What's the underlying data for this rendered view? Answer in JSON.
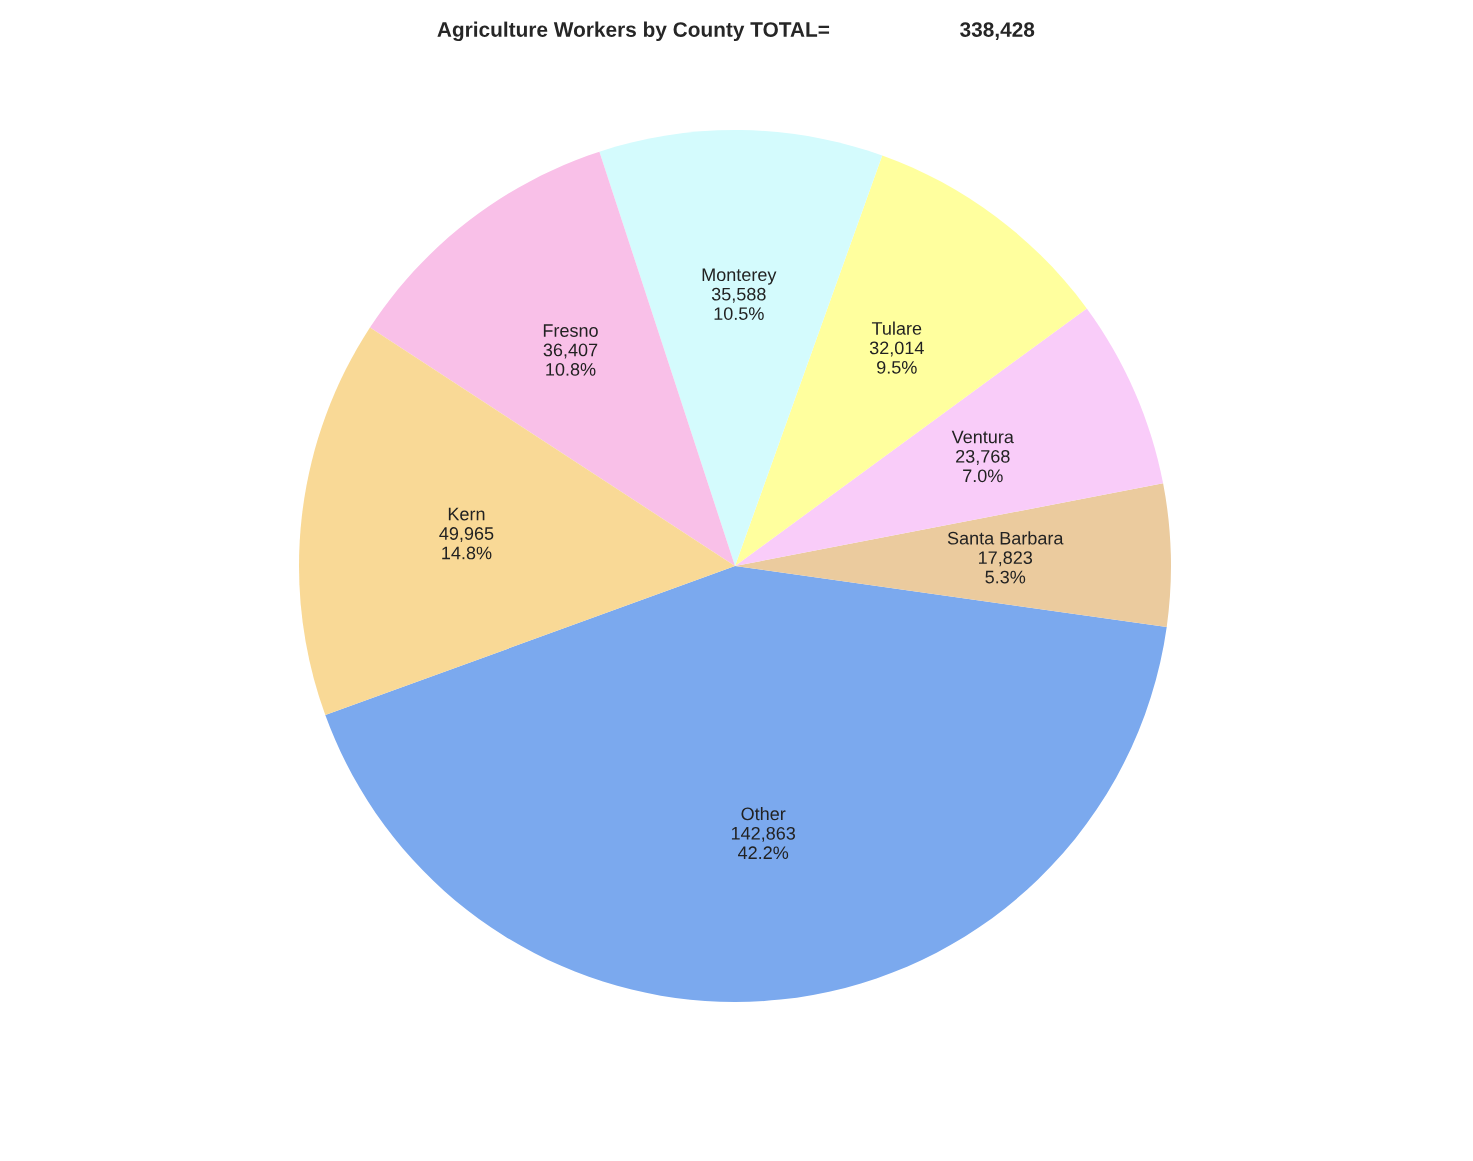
{
  "chart_data": {
    "type": "pie",
    "title": "Agriculture Workers by County TOTAL=",
    "annotations": [
      "338,428"
    ],
    "categories": [
      "Other",
      "Santa Barbara",
      "Ventura",
      "Tulare",
      "Monterey",
      "Fresno",
      "Kern"
    ],
    "values": [
      142863,
      17823,
      23768,
      32014,
      35588,
      36407,
      49965
    ],
    "value_labels": [
      "142,863\n42.2%",
      "17,823\n5.3%",
      "23,768\n7.0%",
      "32,014\n9.5%",
      "35,588\n10.5%",
      "36,407\n10.8%",
      "49,965\n14.8%"
    ],
    "colors": [
      "#7ba9ee",
      "#ebcb9e",
      "#f9ccf9",
      "#ffff9e",
      "#d4fbfd",
      "#f9c0e8",
      "#f9d996"
    ],
    "legend": false
  }
}
